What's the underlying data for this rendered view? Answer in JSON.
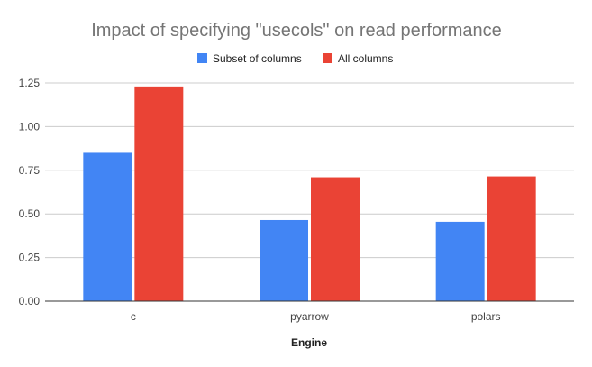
{
  "chart_data": {
    "type": "bar",
    "title": "Impact of specifying \"usecols\" on read performance",
    "xlabel": "Engine",
    "ylabel": "",
    "categories": [
      "c",
      "pyarrow",
      "polars"
    ],
    "series": [
      {
        "name": "Subset of columns",
        "color": "#4285f4",
        "values": [
          0.85,
          0.465,
          0.455
        ]
      },
      {
        "name": "All columns",
        "color": "#ea4335",
        "values": [
          1.23,
          0.71,
          0.715
        ]
      }
    ],
    "ylim": [
      0,
      1.25
    ],
    "yticks": [
      "0.00",
      "0.25",
      "0.50",
      "0.75",
      "1.00",
      "1.25"
    ],
    "grid": true,
    "legend_position": "top-center"
  }
}
